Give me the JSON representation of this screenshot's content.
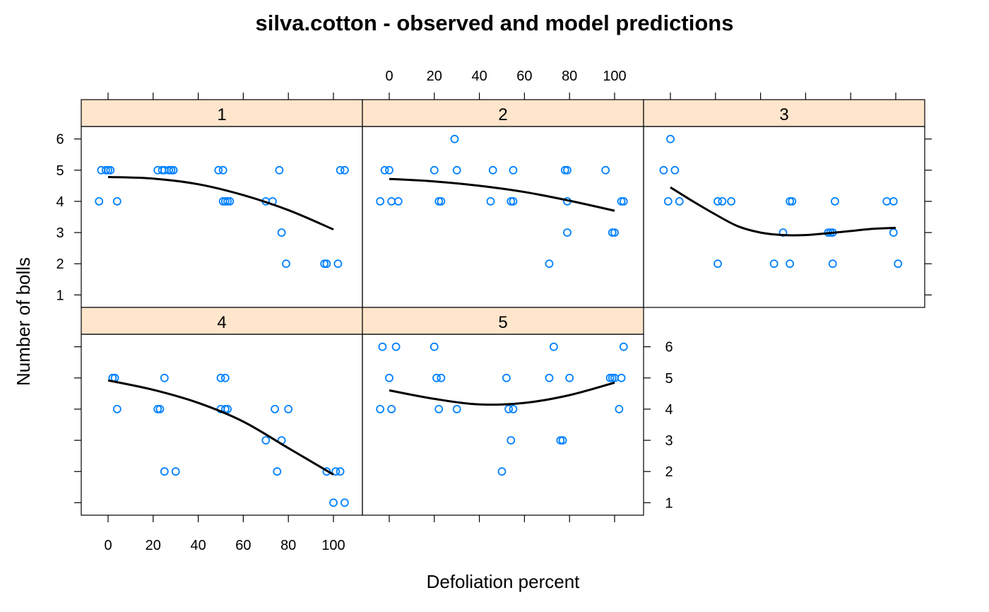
{
  "chart_data": {
    "type": "scatter",
    "title": "silva.cotton - observed and model predictions",
    "xlabel": "Defoliation percent",
    "ylabel": "Number of bolls",
    "xlim": [
      -12,
      112
    ],
    "ylim": [
      0.6,
      6.4
    ],
    "x_ticks": [
      "0",
      "20",
      "40",
      "60",
      "80",
      "100"
    ],
    "y_ticks": [
      "1",
      "2",
      "3",
      "4",
      "5",
      "6"
    ],
    "strip_color": "#FFE5CC",
    "point_color": "#0080FF",
    "line_color": "#000000",
    "panels": [
      {
        "label": "1",
        "points": [
          [
            -4,
            4
          ],
          [
            -3,
            5
          ],
          [
            -1,
            5
          ],
          [
            0,
            5
          ],
          [
            1,
            5
          ],
          [
            4,
            4
          ],
          [
            22,
            5
          ],
          [
            24,
            5
          ],
          [
            25,
            5
          ],
          [
            27,
            5
          ],
          [
            28,
            5
          ],
          [
            29,
            5
          ],
          [
            29,
            5
          ],
          [
            49,
            5
          ],
          [
            51,
            5
          ],
          [
            51,
            4
          ],
          [
            52,
            4
          ],
          [
            53,
            4
          ],
          [
            54,
            4
          ],
          [
            70,
            4
          ],
          [
            73,
            4
          ],
          [
            76,
            5
          ],
          [
            77,
            3
          ],
          [
            79,
            2
          ],
          [
            96,
            2
          ],
          [
            97,
            2
          ],
          [
            102,
            2
          ],
          [
            103,
            5
          ],
          [
            105,
            5
          ]
        ],
        "curve": [
          [
            0,
            4.78
          ],
          [
            20,
            4.73
          ],
          [
            40,
            4.55
          ],
          [
            60,
            4.2
          ],
          [
            80,
            3.72
          ],
          [
            100,
            3.1
          ]
        ]
      },
      {
        "label": "2",
        "points": [
          [
            -4,
            4
          ],
          [
            -2,
            5
          ],
          [
            0,
            5
          ],
          [
            1,
            4
          ],
          [
            4,
            4
          ],
          [
            20,
            5
          ],
          [
            22,
            4
          ],
          [
            23,
            4
          ],
          [
            29,
            6
          ],
          [
            30,
            5
          ],
          [
            45,
            4
          ],
          [
            46,
            5
          ],
          [
            54,
            4
          ],
          [
            55,
            4
          ],
          [
            55,
            5
          ],
          [
            71,
            2
          ],
          [
            78,
            5
          ],
          [
            79,
            5
          ],
          [
            79,
            4
          ],
          [
            79,
            3
          ],
          [
            96,
            5
          ],
          [
            99,
            3
          ],
          [
            100,
            3
          ],
          [
            103,
            4
          ],
          [
            104,
            4
          ]
        ],
        "curve": [
          [
            0,
            4.72
          ],
          [
            20,
            4.64
          ],
          [
            40,
            4.5
          ],
          [
            60,
            4.3
          ],
          [
            80,
            4.02
          ],
          [
            100,
            3.7
          ]
        ]
      },
      {
        "label": "3",
        "points": [
          [
            -3,
            5
          ],
          [
            -1,
            4
          ],
          [
            0,
            6
          ],
          [
            2,
            5
          ],
          [
            4,
            4
          ],
          [
            21,
            2
          ],
          [
            21,
            4
          ],
          [
            23,
            4
          ],
          [
            27,
            4
          ],
          [
            46,
            2
          ],
          [
            50,
            3
          ],
          [
            53,
            2
          ],
          [
            53,
            4
          ],
          [
            54,
            4
          ],
          [
            70,
            3
          ],
          [
            71,
            3
          ],
          [
            72,
            3
          ],
          [
            72,
            2
          ],
          [
            73,
            4
          ],
          [
            96,
            4
          ],
          [
            99,
            4
          ],
          [
            99,
            3
          ],
          [
            101,
            2
          ]
        ],
        "curve": [
          [
            0,
            4.45
          ],
          [
            10,
            4.0
          ],
          [
            20,
            3.58
          ],
          [
            30,
            3.2
          ],
          [
            40,
            3.0
          ],
          [
            50,
            2.92
          ],
          [
            60,
            2.92
          ],
          [
            70,
            2.98
          ],
          [
            80,
            3.05
          ],
          [
            90,
            3.12
          ],
          [
            100,
            3.15
          ]
        ]
      },
      {
        "label": "4",
        "points": [
          [
            2,
            5
          ],
          [
            3,
            5
          ],
          [
            4,
            4
          ],
          [
            22,
            4
          ],
          [
            23,
            4
          ],
          [
            25,
            2
          ],
          [
            25,
            5
          ],
          [
            30,
            2
          ],
          [
            50,
            5
          ],
          [
            50,
            4
          ],
          [
            52,
            4
          ],
          [
            52,
            5
          ],
          [
            53,
            4
          ],
          [
            70,
            3
          ],
          [
            74,
            4
          ],
          [
            75,
            2
          ],
          [
            77,
            3
          ],
          [
            80,
            4
          ],
          [
            97,
            2
          ],
          [
            100,
            1
          ],
          [
            101,
            2
          ],
          [
            103,
            2
          ],
          [
            105,
            1
          ]
        ],
        "curve": [
          [
            0,
            4.92
          ],
          [
            20,
            4.62
          ],
          [
            40,
            4.2
          ],
          [
            60,
            3.6
          ],
          [
            80,
            2.75
          ],
          [
            100,
            1.9
          ]
        ]
      },
      {
        "label": "5",
        "points": [
          [
            -4,
            4
          ],
          [
            -3,
            6
          ],
          [
            0,
            5
          ],
          [
            1,
            4
          ],
          [
            3,
            6
          ],
          [
            20,
            6
          ],
          [
            21,
            5
          ],
          [
            22,
            4
          ],
          [
            23,
            5
          ],
          [
            30,
            4
          ],
          [
            50,
            2
          ],
          [
            52,
            5
          ],
          [
            53,
            4
          ],
          [
            54,
            3
          ],
          [
            55,
            4
          ],
          [
            71,
            5
          ],
          [
            73,
            6
          ],
          [
            76,
            3
          ],
          [
            77,
            3
          ],
          [
            80,
            5
          ],
          [
            98,
            5
          ],
          [
            99,
            5
          ],
          [
            100,
            5
          ],
          [
            102,
            4
          ],
          [
            103,
            5
          ],
          [
            104,
            6
          ]
        ],
        "curve": [
          [
            0,
            4.6
          ],
          [
            20,
            4.33
          ],
          [
            40,
            4.15
          ],
          [
            60,
            4.2
          ],
          [
            80,
            4.45
          ],
          [
            100,
            4.85
          ]
        ]
      }
    ]
  }
}
